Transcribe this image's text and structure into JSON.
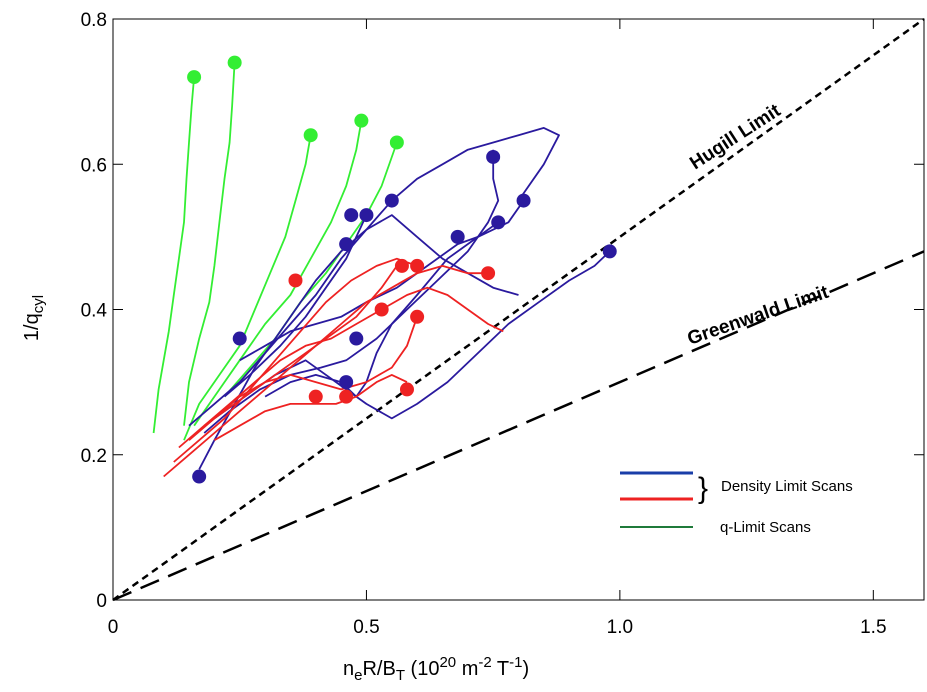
{
  "chart_data": {
    "type": "line",
    "xlabel": {
      "base": "n",
      "sub1": "e",
      "mid": "R/B",
      "sub2": "T",
      "units_open": " (10",
      "sup1": "20",
      "units_mid": " m",
      "sup2": "-2",
      "units_t": " T",
      "sup3": "-1",
      "units_close": ")"
    },
    "ylabel": {
      "pre": "1/q",
      "sub": "cyl"
    },
    "xlim": [
      0,
      1.6
    ],
    "ylim": [
      0,
      0.8
    ],
    "xticks": [
      0,
      0.5,
      1.0,
      1.5
    ],
    "xtick_labels": [
      "0",
      "0.5",
      "1.0",
      "1.5"
    ],
    "yticks": [
      0,
      0.2,
      0.4,
      0.6,
      0.8
    ],
    "ytick_labels": [
      "0",
      "0.2",
      "0.4",
      "0.6",
      "0.8"
    ],
    "grid": false,
    "legend_position": "bottom-right",
    "colors": {
      "blue": "#2a1a9e",
      "red": "#ee2222",
      "green": "#33ee33",
      "legend_blue": "#1a3ea8",
      "legend_green": "#1f7a3a"
    },
    "limit_lines": [
      {
        "label": "Hugill Limit",
        "slope": 0.5,
        "style": "short-dash"
      },
      {
        "label": "Greenwald Limit",
        "slope": 0.3,
        "style": "long-dash"
      }
    ],
    "legend": {
      "blue_red_label": "Density Limit Scans",
      "green_label": "q-Limit Scans",
      "brace": "}"
    },
    "series": [
      {
        "color_key": "green",
        "traces": [
          [
            [
              0.08,
              0.23
            ],
            [
              0.09,
              0.29
            ],
            [
              0.1,
              0.33
            ],
            [
              0.11,
              0.37
            ],
            [
              0.12,
              0.42
            ],
            [
              0.13,
              0.47
            ],
            [
              0.14,
              0.52
            ],
            [
              0.145,
              0.58
            ],
            [
              0.15,
              0.63
            ],
            [
              0.155,
              0.68
            ],
            [
              0.16,
              0.72
            ]
          ],
          [
            [
              0.14,
              0.24
            ],
            [
              0.15,
              0.3
            ],
            [
              0.17,
              0.36
            ],
            [
              0.19,
              0.41
            ],
            [
              0.2,
              0.46
            ],
            [
              0.21,
              0.52
            ],
            [
              0.22,
              0.58
            ],
            [
              0.23,
              0.63
            ],
            [
              0.235,
              0.68
            ],
            [
              0.24,
              0.74
            ]
          ],
          [
            [
              0.14,
              0.22
            ],
            [
              0.17,
              0.27
            ],
            [
              0.21,
              0.31
            ],
            [
              0.25,
              0.35
            ],
            [
              0.28,
              0.4
            ],
            [
              0.31,
              0.45
            ],
            [
              0.34,
              0.5
            ],
            [
              0.36,
              0.55
            ],
            [
              0.38,
              0.6
            ],
            [
              0.39,
              0.64
            ]
          ],
          [
            [
              0.16,
              0.24
            ],
            [
              0.2,
              0.28
            ],
            [
              0.25,
              0.33
            ],
            [
              0.3,
              0.38
            ],
            [
              0.35,
              0.42
            ],
            [
              0.39,
              0.47
            ],
            [
              0.43,
              0.52
            ],
            [
              0.46,
              0.57
            ],
            [
              0.48,
              0.62
            ],
            [
              0.49,
              0.66
            ]
          ],
          [
            [
              0.22,
              0.28
            ],
            [
              0.27,
              0.32
            ],
            [
              0.32,
              0.36
            ],
            [
              0.37,
              0.41
            ],
            [
              0.42,
              0.45
            ],
            [
              0.46,
              0.49
            ],
            [
              0.5,
              0.53
            ],
            [
              0.53,
              0.57
            ],
            [
              0.55,
              0.61
            ],
            [
              0.56,
              0.63
            ]
          ]
        ],
        "markers": [
          [
            0.16,
            0.72
          ],
          [
            0.24,
            0.74
          ],
          [
            0.39,
            0.64
          ],
          [
            0.49,
            0.66
          ],
          [
            0.56,
            0.63
          ]
        ]
      },
      {
        "color_key": "blue",
        "traces": [
          [
            [
              0.15,
              0.24
            ],
            [
              0.2,
              0.27
            ],
            [
              0.25,
              0.3
            ],
            [
              0.3,
              0.34
            ],
            [
              0.35,
              0.38
            ],
            [
              0.4,
              0.42
            ],
            [
              0.45,
              0.47
            ],
            [
              0.5,
              0.51
            ],
            [
              0.55,
              0.55
            ],
            [
              0.6,
              0.58
            ],
            [
              0.65,
              0.6
            ],
            [
              0.7,
              0.62
            ],
            [
              0.75,
              0.63
            ],
            [
              0.8,
              0.64
            ],
            [
              0.85,
              0.65
            ],
            [
              0.88,
              0.64
            ],
            [
              0.85,
              0.6
            ],
            [
              0.8,
              0.55
            ]
          ],
          [
            [
              0.17,
              0.18
            ],
            [
              0.2,
              0.22
            ],
            [
              0.24,
              0.27
            ],
            [
              0.28,
              0.32
            ],
            [
              0.32,
              0.36
            ],
            [
              0.36,
              0.4
            ],
            [
              0.4,
              0.44
            ],
            [
              0.45,
              0.48
            ],
            [
              0.5,
              0.51
            ],
            [
              0.55,
              0.53
            ],
            [
              0.6,
              0.5
            ],
            [
              0.65,
              0.47
            ],
            [
              0.7,
              0.45
            ],
            [
              0.75,
              0.43
            ],
            [
              0.8,
              0.42
            ]
          ],
          [
            [
              0.2,
              0.25
            ],
            [
              0.26,
              0.28
            ],
            [
              0.32,
              0.31
            ],
            [
              0.38,
              0.33
            ],
            [
              0.44,
              0.3
            ],
            [
              0.5,
              0.27
            ],
            [
              0.55,
              0.25
            ],
            [
              0.6,
              0.27
            ],
            [
              0.66,
              0.3
            ],
            [
              0.72,
              0.34
            ],
            [
              0.78,
              0.38
            ],
            [
              0.84,
              0.41
            ],
            [
              0.9,
              0.44
            ],
            [
              0.95,
              0.46
            ],
            [
              0.98,
              0.48
            ]
          ],
          [
            [
              0.22,
              0.28
            ],
            [
              0.27,
              0.31
            ],
            [
              0.33,
              0.35
            ],
            [
              0.38,
              0.39
            ],
            [
              0.42,
              0.43
            ],
            [
              0.46,
              0.47
            ],
            [
              0.48,
              0.5
            ],
            [
              0.5,
              0.53
            ]
          ],
          [
            [
              0.18,
              0.23
            ],
            [
              0.23,
              0.26
            ],
            [
              0.29,
              0.29
            ],
            [
              0.35,
              0.31
            ],
            [
              0.41,
              0.32
            ],
            [
              0.46,
              0.33
            ],
            [
              0.52,
              0.36
            ],
            [
              0.58,
              0.4
            ],
            [
              0.64,
              0.44
            ],
            [
              0.7,
              0.48
            ],
            [
              0.74,
              0.52
            ],
            [
              0.76,
              0.55
            ],
            [
              0.75,
              0.58
            ],
            [
              0.75,
              0.62
            ]
          ],
          [
            [
              0.25,
              0.33
            ],
            [
              0.3,
              0.35
            ],
            [
              0.35,
              0.37
            ],
            [
              0.4,
              0.38
            ],
            [
              0.45,
              0.39
            ],
            [
              0.5,
              0.41
            ],
            [
              0.56,
              0.43
            ],
            [
              0.62,
              0.46
            ],
            [
              0.68,
              0.49
            ],
            [
              0.72,
              0.5
            ],
            [
              0.76,
              0.52
            ]
          ],
          [
            [
              0.3,
              0.28
            ],
            [
              0.35,
              0.3
            ],
            [
              0.4,
              0.31
            ],
            [
              0.45,
              0.3
            ],
            [
              0.48,
              0.28
            ],
            [
              0.5,
              0.3
            ],
            [
              0.52,
              0.34
            ],
            [
              0.55,
              0.38
            ],
            [
              0.6,
              0.42
            ],
            [
              0.66,
              0.47
            ],
            [
              0.72,
              0.5
            ],
            [
              0.78,
              0.52
            ],
            [
              0.81,
              0.55
            ]
          ]
        ],
        "markers": [
          [
            0.17,
            0.17
          ],
          [
            0.25,
            0.36
          ],
          [
            0.47,
            0.53
          ],
          [
            0.55,
            0.55
          ],
          [
            0.46,
            0.49
          ],
          [
            0.5,
            0.53
          ],
          [
            0.75,
            0.61
          ],
          [
            0.76,
            0.52
          ],
          [
            0.81,
            0.55
          ],
          [
            0.68,
            0.5
          ],
          [
            0.98,
            0.48
          ],
          [
            0.46,
            0.3
          ],
          [
            0.48,
            0.36
          ]
        ]
      },
      {
        "color_key": "red",
        "traces": [
          [
            [
              0.1,
              0.17
            ],
            [
              0.15,
              0.2
            ],
            [
              0.2,
              0.23
            ],
            [
              0.25,
              0.26
            ],
            [
              0.3,
              0.29
            ],
            [
              0.35,
              0.32
            ],
            [
              0.4,
              0.35
            ],
            [
              0.45,
              0.38
            ],
            [
              0.5,
              0.41
            ],
            [
              0.55,
              0.43
            ],
            [
              0.6,
              0.45
            ],
            [
              0.65,
              0.46
            ],
            [
              0.7,
              0.45
            ],
            [
              0.74,
              0.45
            ]
          ],
          [
            [
              0.12,
              0.19
            ],
            [
              0.17,
              0.22
            ],
            [
              0.22,
              0.25
            ],
            [
              0.27,
              0.29
            ],
            [
              0.32,
              0.33
            ],
            [
              0.37,
              0.37
            ],
            [
              0.42,
              0.41
            ],
            [
              0.47,
              0.44
            ],
            [
              0.52,
              0.46
            ],
            [
              0.56,
              0.47
            ],
            [
              0.6,
              0.46
            ]
          ],
          [
            [
              0.13,
              0.21
            ],
            [
              0.18,
              0.24
            ],
            [
              0.23,
              0.27
            ],
            [
              0.28,
              0.3
            ],
            [
              0.33,
              0.33
            ],
            [
              0.38,
              0.35
            ],
            [
              0.43,
              0.36
            ],
            [
              0.48,
              0.38
            ],
            [
              0.53,
              0.4
            ],
            [
              0.58,
              0.42
            ],
            [
              0.62,
              0.43
            ],
            [
              0.66,
              0.42
            ],
            [
              0.7,
              0.4
            ],
            [
              0.74,
              0.38
            ],
            [
              0.77,
              0.37
            ]
          ],
          [
            [
              0.15,
              0.22
            ],
            [
              0.2,
              0.25
            ],
            [
              0.25,
              0.28
            ],
            [
              0.3,
              0.3
            ],
            [
              0.35,
              0.31
            ],
            [
              0.4,
              0.3
            ],
            [
              0.45,
              0.29
            ],
            [
              0.5,
              0.3
            ],
            [
              0.55,
              0.32
            ],
            [
              0.58,
              0.35
            ],
            [
              0.6,
              0.39
            ]
          ],
          [
            [
              0.18,
              0.24
            ],
            [
              0.24,
              0.27
            ],
            [
              0.3,
              0.3
            ],
            [
              0.36,
              0.33
            ],
            [
              0.42,
              0.36
            ],
            [
              0.48,
              0.39
            ],
            [
              0.53,
              0.43
            ],
            [
              0.56,
              0.46
            ]
          ],
          [
            [
              0.2,
              0.22
            ],
            [
              0.25,
              0.24
            ],
            [
              0.3,
              0.26
            ],
            [
              0.35,
              0.27
            ],
            [
              0.4,
              0.27
            ],
            [
              0.44,
              0.27
            ],
            [
              0.48,
              0.28
            ],
            [
              0.52,
              0.3
            ],
            [
              0.55,
              0.31
            ],
            [
              0.58,
              0.3
            ]
          ]
        ],
        "markers": [
          [
            0.57,
            0.46
          ],
          [
            0.6,
            0.46
          ],
          [
            0.74,
            0.45
          ],
          [
            0.53,
            0.4
          ],
          [
            0.6,
            0.39
          ],
          [
            0.58,
            0.29
          ],
          [
            0.46,
            0.28
          ],
          [
            0.4,
            0.28
          ],
          [
            0.36,
            0.44
          ]
        ]
      }
    ]
  }
}
